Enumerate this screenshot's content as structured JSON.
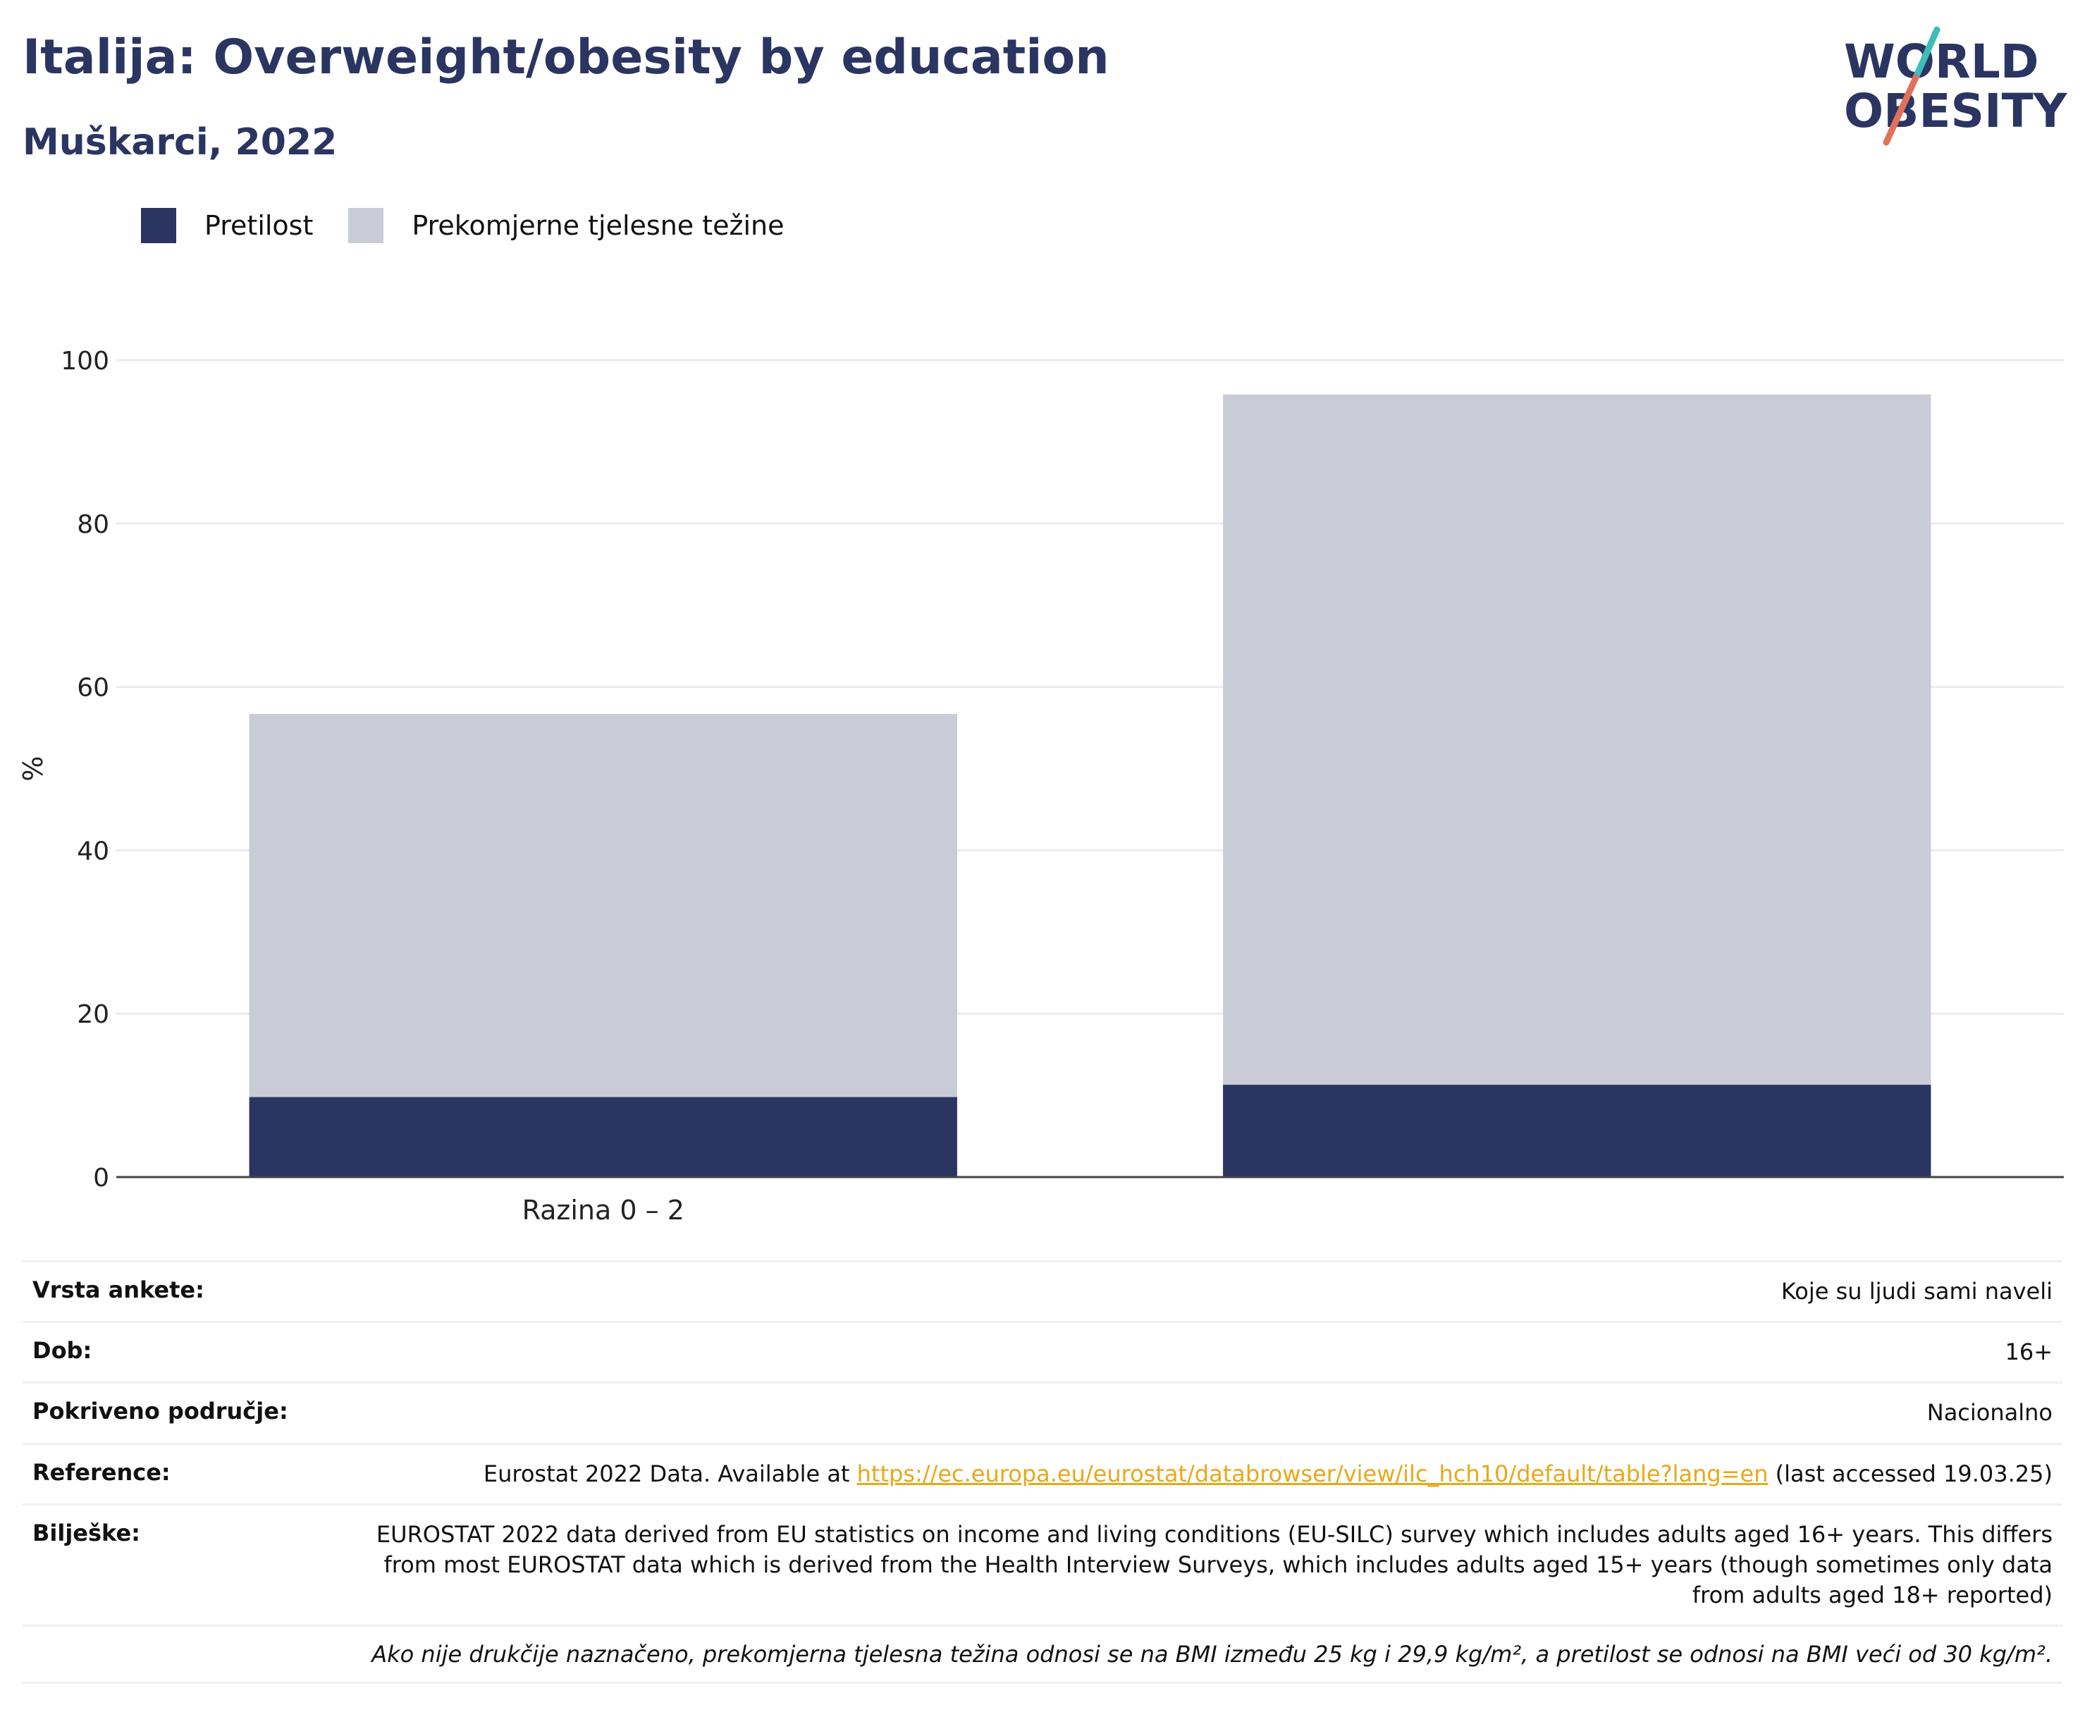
{
  "header": {
    "title": "Italija: Overweight/obesity by education",
    "subtitle": "Muškarci, 2022"
  },
  "logo": {
    "line1": "WORLD",
    "line2": "OBESITY"
  },
  "legend": [
    {
      "label": "Pretilost",
      "color": "#2b3561"
    },
    {
      "label": "Prekomjerne tjelesne težine",
      "color": "#c9ccd7"
    }
  ],
  "chart_data": {
    "type": "bar",
    "stacked": true,
    "categories": [
      "Razina 0 – 2",
      ""
    ],
    "series": [
      {
        "name": "Pretilost",
        "color": "#2b3561",
        "values": [
          9.8,
          11.3
        ]
      },
      {
        "name": "Prekomjerne tjelesne težine",
        "color": "#c9ccd7",
        "values": [
          46.9,
          84.5
        ]
      }
    ],
    "ylabel": "%",
    "ylim": [
      0,
      100
    ],
    "yticks": [
      0,
      20,
      40,
      60,
      80,
      100
    ],
    "grid": true,
    "legend_position": "top-left"
  },
  "info": {
    "rows": [
      {
        "key": "Vrsta ankete:",
        "value": "Koje su ljudi sami naveli"
      },
      {
        "key": "Dob:",
        "value": "16+"
      },
      {
        "key": "Pokriveno područje:",
        "value": "Nacionalno"
      }
    ],
    "reference": {
      "key": "Reference:",
      "before": "Eurostat 2022 Data. Available at ",
      "link": "https://ec.europa.eu/eurostat/databrowser/view/ilc_hch10/default/table?lang=en",
      "after": " (last accessed 19.03.25)"
    },
    "notes": {
      "key": "Bilješke:",
      "value": "EUROSTAT 2022 data derived from EU statistics on income and living conditions (EU-SILC) survey which includes adults aged 16+ years. This differs from most EUROSTAT data which is derived from the Health Interview Surveys, which includes adults aged 15+ years (though sometimes only data from adults aged 18+ reported)"
    },
    "footnote": "Ako nije drukčije naznačeno, prekomjerna tjelesna težina odnosi se na BMI između 25 kg i 29,9 kg/m², a pretilost se odnosi na BMI veći od 30 kg/m²."
  }
}
